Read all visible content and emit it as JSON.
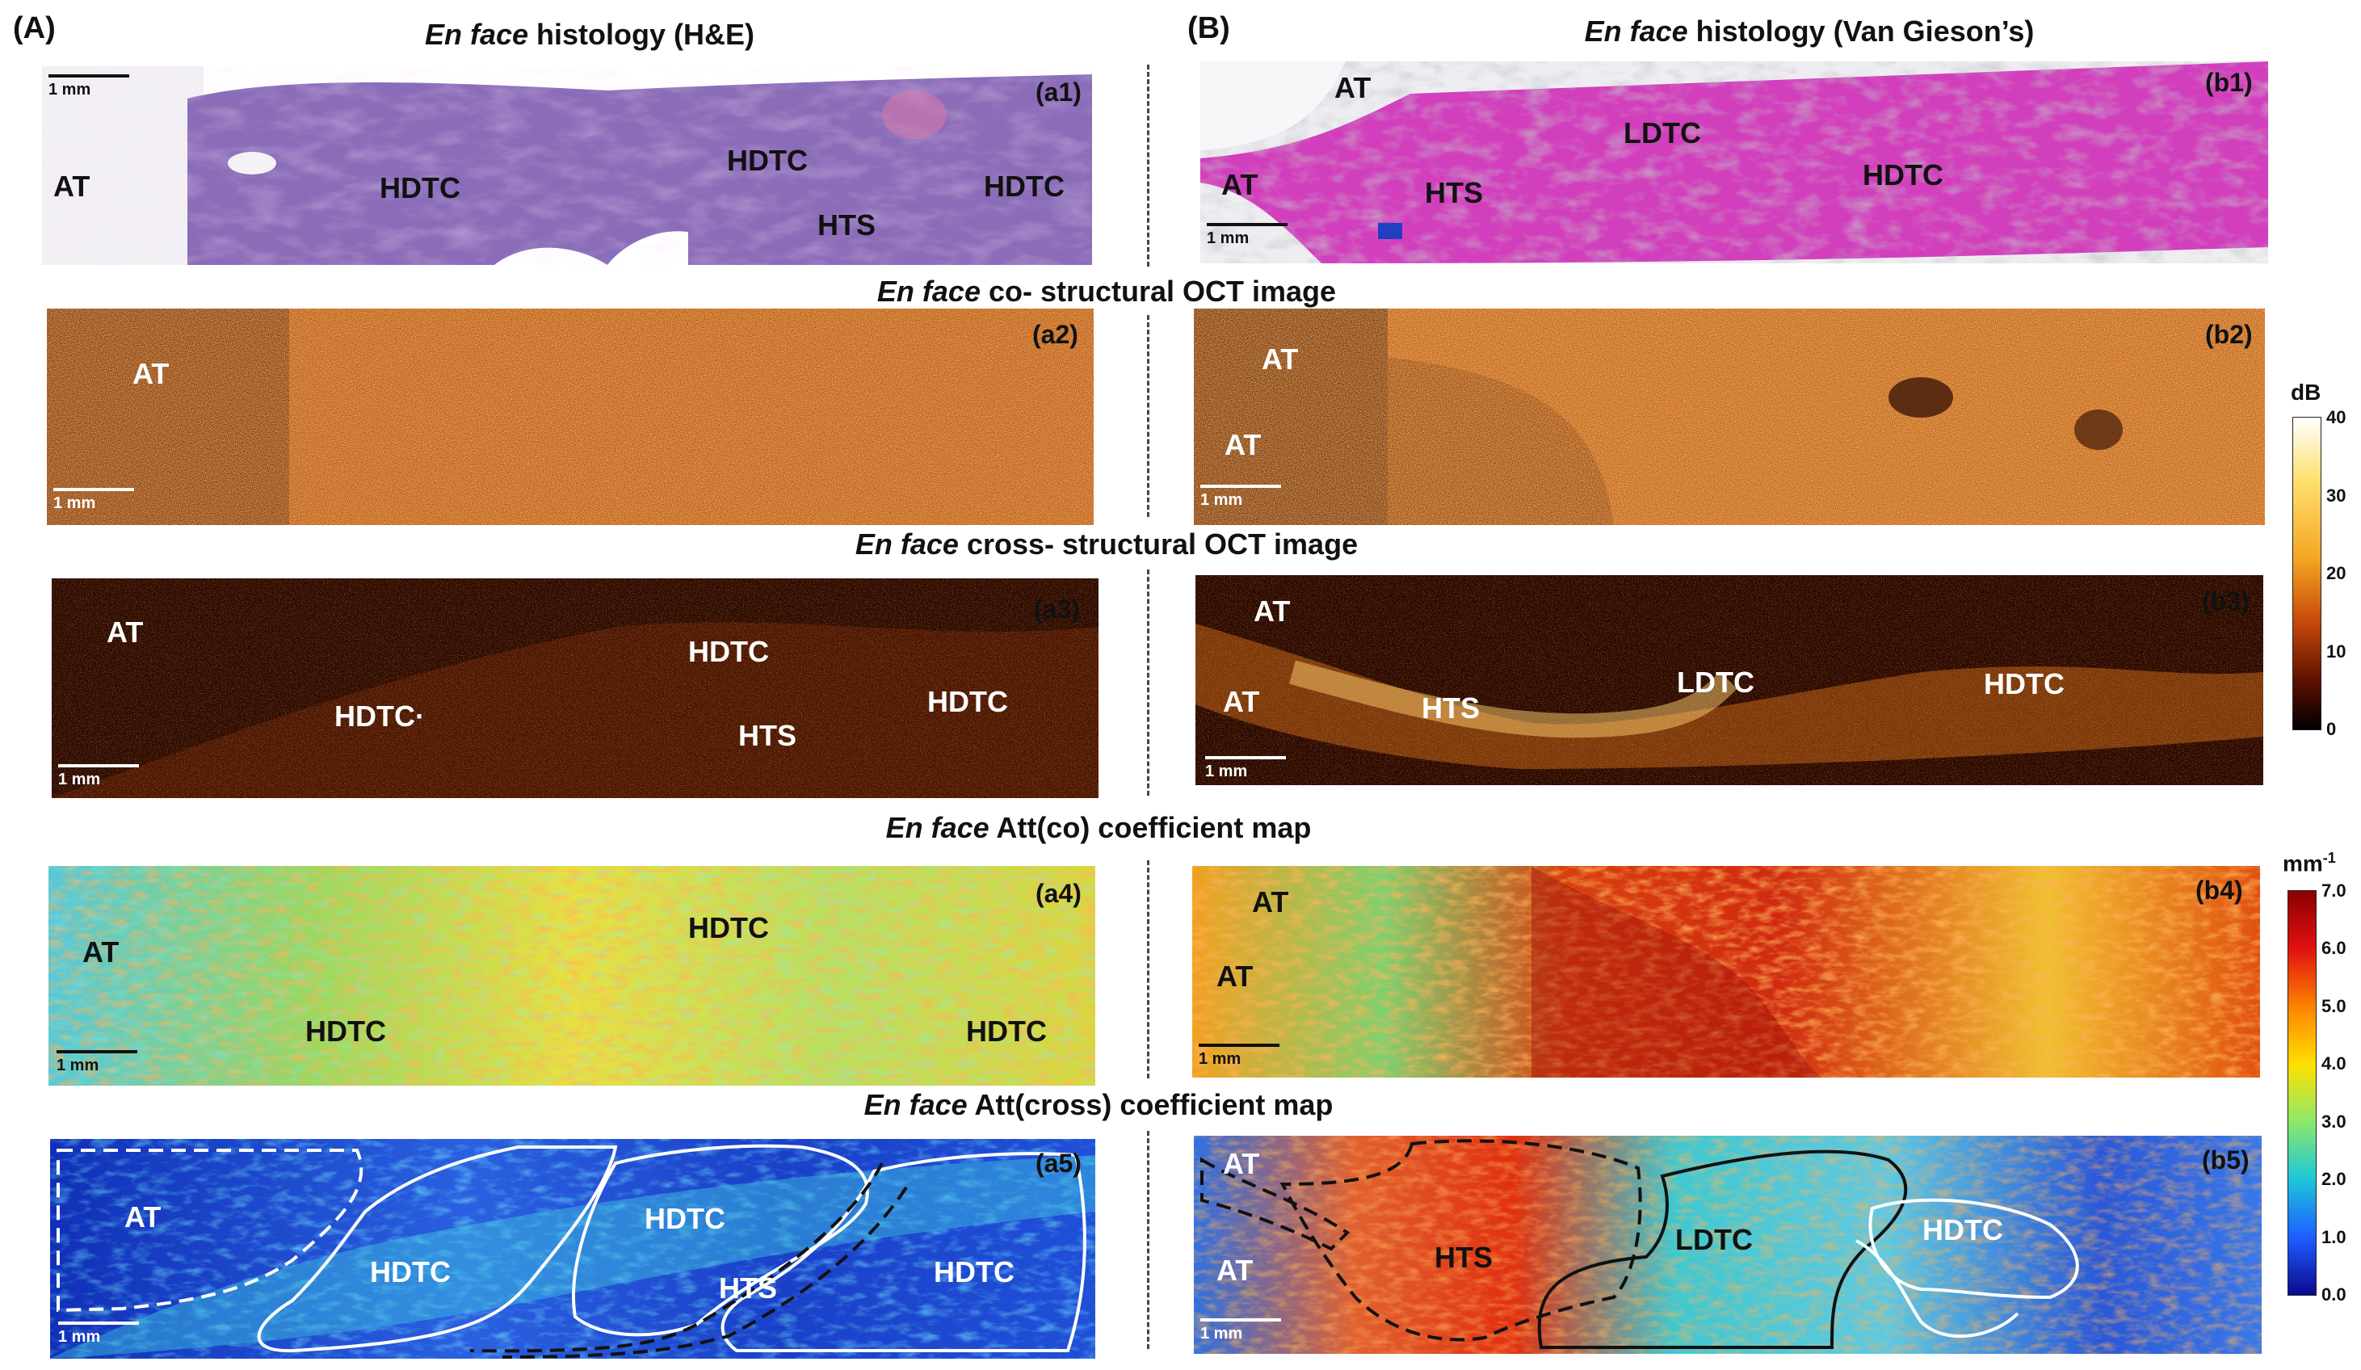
{
  "panels": {
    "A": "(A)",
    "B": "(B)"
  },
  "titles": {
    "he": {
      "italic": "En face",
      "rest": " histology (H&E)"
    },
    "vg": {
      "italic": "En face",
      "rest": " histology (Van Gieson’s)"
    },
    "co": {
      "italic": "En face",
      "rest": " co- structural OCT image"
    },
    "cross": {
      "italic": "En face",
      "rest": " cross- structural OCT image"
    },
    "attco": {
      "italic": "En face",
      "rest": " Att(co) coefficient map"
    },
    "attcross": {
      "italic": "En face",
      "rest": " Att(cross)  coefficient  map"
    }
  },
  "tags": {
    "a1": "(a1)",
    "a2": "(a2)",
    "a3": "(a3)",
    "a4": "(a4)",
    "a5": "(a5)",
    "b1": "(b1)",
    "b2": "(b2)",
    "b3": "(b3)",
    "b4": "(b4)",
    "b5": "(b5)"
  },
  "scalebar": "1 mm",
  "tissue_labels": {
    "at": "AT",
    "hdtc": "HDTC",
    "hts": "HTS",
    "ldtc": "LDTC",
    "hdtc_dot": "HDTC·"
  },
  "colorbar_db": {
    "unit": "dB",
    "ticks": [
      "40",
      "30",
      "20",
      "10",
      "0"
    ],
    "colors": [
      "#ffffff",
      "#ffe070",
      "#f5a623",
      "#c84a0a",
      "#5a0f00",
      "#000000"
    ]
  },
  "colorbar_att": {
    "unit": "mm",
    "unit_sup": "-1",
    "ticks": [
      "7.0",
      "6.0",
      "5.0",
      "4.0",
      "3.0",
      "2.0",
      "1.0",
      "0.0"
    ],
    "colors": [
      "#8b0000",
      "#e01010",
      "#ff8c00",
      "#ffe000",
      "#8de86a",
      "#1ec8d8",
      "#1e5cff",
      "#0a0a8c"
    ]
  },
  "colors": {
    "he_purple": "#8b6ab5",
    "vg_magenta": "#d63fbf",
    "oct_orange": "#c9560f",
    "oct_dark": "#2a0800",
    "att_green": "#8fd16a",
    "att_blue": "#1c3fd1"
  }
}
